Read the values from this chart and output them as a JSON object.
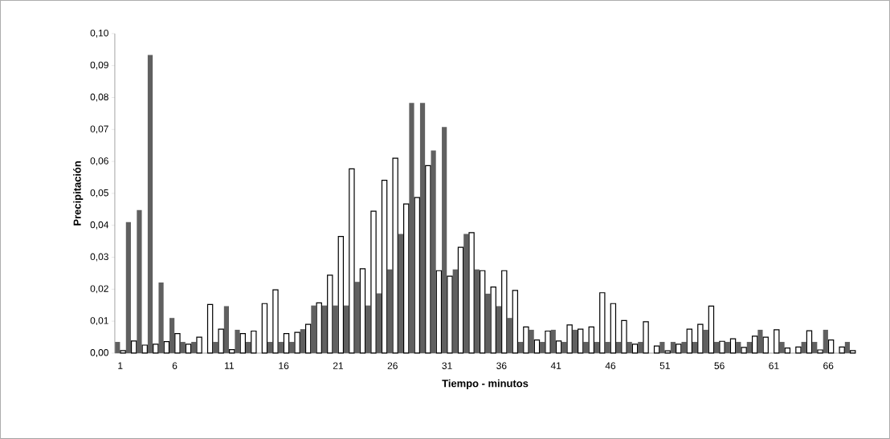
{
  "chart_data": {
    "type": "bar",
    "xlabel": "Tiempo - minutos",
    "ylabel": "Precipitación",
    "categories": [
      "1",
      null,
      null,
      null,
      null,
      "6",
      null,
      null,
      null,
      null,
      "11",
      null,
      null,
      null,
      null,
      "16",
      null,
      null,
      null,
      null,
      "21",
      null,
      null,
      null,
      null,
      "26",
      null,
      null,
      null,
      null,
      "31",
      null,
      null,
      null,
      null,
      "36",
      null,
      null,
      null,
      null,
      "41",
      null,
      null,
      null,
      null,
      "46",
      null,
      null,
      null,
      null,
      "51",
      null,
      null,
      null,
      null,
      "56",
      null,
      null,
      null,
      null,
      "61",
      null,
      null,
      null,
      null,
      "66",
      null,
      null
    ],
    "series": [
      {
        "color": "#606060",
        "values": [
          0.0035,
          0.041,
          0.0448,
          0.0933,
          0.0221,
          0.011,
          0.0035,
          0.0035,
          0,
          0.0035,
          0.0147,
          0.0073,
          0.0035,
          0,
          0.0035,
          0.0035,
          0.0035,
          0.0075,
          0.0149,
          0.0149,
          0.0149,
          0.0149,
          0.0223,
          0.0149,
          0.0187,
          0.0262,
          0.0373,
          0.0783,
          0.0783,
          0.0634,
          0.0708,
          0.0262,
          0.0373,
          0.0262,
          0.0186,
          0.0147,
          0.011,
          0.0035,
          0.0073,
          0.0035,
          0.0073,
          0.0035,
          0.0073,
          0.0035,
          0.0035,
          0.0035,
          0.0035,
          0.0035,
          0.0035,
          0,
          0.0035,
          0.0035,
          0.0035,
          0.0035,
          0.0073,
          0.0035,
          0.0035,
          0.0035,
          0.0035,
          0.0073,
          0,
          0.0035,
          0,
          0.0035,
          0.0035,
          0.0073,
          0,
          0.0035
        ]
      },
      {
        "color": "#ffffff",
        "values": [
          0.0008,
          0.0038,
          0.0025,
          0.0028,
          0.0036,
          0.0061,
          0.0028,
          0.005,
          0.0152,
          0.0075,
          0.0011,
          0.0061,
          0.0069,
          0.0155,
          0.0198,
          0.0061,
          0.0065,
          0.009,
          0.0157,
          0.0244,
          0.0365,
          0.0577,
          0.0264,
          0.0444,
          0.0541,
          0.061,
          0.0467,
          0.0487,
          0.0587,
          0.0258,
          0.0241,
          0.0331,
          0.0377,
          0.0258,
          0.0207,
          0.0258,
          0.0196,
          0.0082,
          0.0041,
          0.0069,
          0.0038,
          0.0088,
          0.0075,
          0.0082,
          0.0189,
          0.0155,
          0.0102,
          0.0028,
          0.0098,
          0.0022,
          0.0007,
          0.0028,
          0.0075,
          0.009,
          0.0147,
          0.0037,
          0.0045,
          0.0018,
          0.0053,
          0.005,
          0.0073,
          0.0016,
          0.0019,
          0.007,
          0.001,
          0.0041,
          0.0019,
          0.0008
        ]
      }
    ],
    "ylim": [
      0,
      0.1
    ],
    "yticks": [
      {
        "value": 0,
        "label": "0,00"
      },
      {
        "value": 0.01,
        "label": "0,01"
      },
      {
        "value": 0.02,
        "label": "0,02"
      },
      {
        "value": 0.03,
        "label": "0,03"
      },
      {
        "value": 0.04,
        "label": "0,04"
      },
      {
        "value": 0.05,
        "label": "0,05"
      },
      {
        "value": 0.06,
        "label": "0,06"
      },
      {
        "value": 0.07,
        "label": "0,07"
      },
      {
        "value": 0.08,
        "label": "0,08"
      },
      {
        "value": 0.09,
        "label": "0,09"
      },
      {
        "value": 0.1,
        "label": "0,10"
      }
    ]
  }
}
